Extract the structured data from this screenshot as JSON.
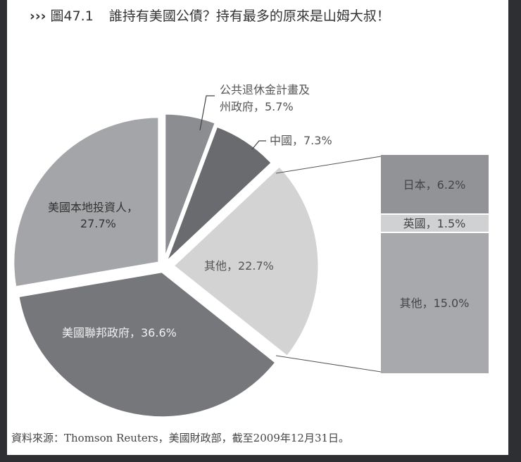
{
  "title": {
    "arrows": "›››",
    "figure_no": "圖47.1",
    "text": "誰持有美國公債？持有最多的原來是山姆大叔！"
  },
  "source": "資料來源：Thomson Reuters，美國財政部，截至2009年12月31日。",
  "chart_data": {
    "type": "pie",
    "title": "誰持有美國公債？持有最多的原來是山姆大叔！",
    "slices": [
      {
        "label": "公共退休金計畫及州政府",
        "value": 5.7,
        "color": "#8c8d91"
      },
      {
        "label": "中國",
        "value": 7.3,
        "color": "#6a6b6f"
      },
      {
        "label": "其他",
        "value": 22.7,
        "color": "#d3d3d4"
      },
      {
        "label": "美國聯邦政府",
        "value": 36.6,
        "color": "#76777b"
      },
      {
        "label": "美國本地投資人",
        "value": 27.7,
        "color": "#a4a5a8"
      }
    ],
    "breakdown_of": "其他",
    "breakdown": [
      {
        "label": "日本",
        "value": 6.2,
        "color": "#929397"
      },
      {
        "label": "英國",
        "value": 1.5,
        "color": "#d0d1d2"
      },
      {
        "label": "其他",
        "value": 15.0,
        "color": "#a8a9ac"
      }
    ]
  },
  "labels": {
    "pension_line1": "公共退休金計畫及",
    "pension_line2": "州政府，5.7%",
    "china": "中國，7.3%",
    "others": "其他，22.7%",
    "federal": "美國聯邦政府，36.6%",
    "local_line1": "美國本地投資人，",
    "local_line2": "27.7%",
    "japan": "日本，6.2%",
    "uk": "英國，1.5%",
    "others_detail": "其他，15.0%"
  }
}
